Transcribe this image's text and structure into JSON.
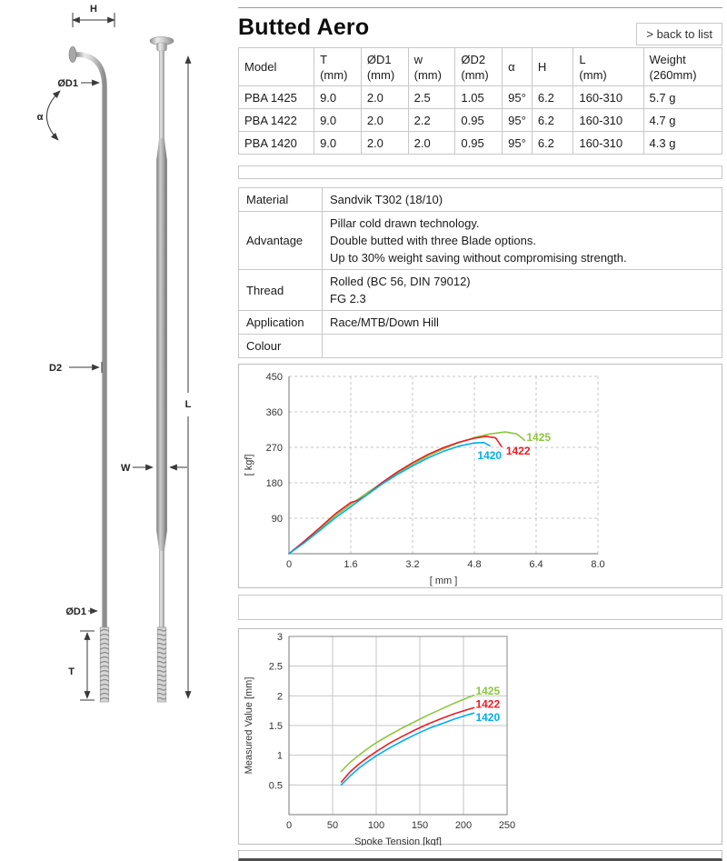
{
  "page": {
    "title": "Butted Aero",
    "back_link": "> back to list"
  },
  "diagram": {
    "h": "H",
    "d1_top": "ØD1",
    "alpha": "α",
    "d2": "D2",
    "l": "L",
    "w": "W",
    "d1_bottom": "ØD1",
    "t": "T"
  },
  "spec_table": {
    "headers": [
      [
        "Model",
        ""
      ],
      [
        "T",
        "(mm)"
      ],
      [
        "ØD1",
        "(mm)"
      ],
      [
        "w",
        "(mm)"
      ],
      [
        "ØD2",
        "(mm)"
      ],
      [
        "α",
        ""
      ],
      [
        "H",
        ""
      ],
      [
        "L",
        "(mm)"
      ],
      [
        "Weight",
        "(260mm)"
      ]
    ],
    "rows": [
      [
        "PBA 1425",
        "9.0",
        "2.0",
        "2.5",
        "1.05",
        "95°",
        "6.2",
        "160-310",
        "5.7 g"
      ],
      [
        "PBA 1422",
        "9.0",
        "2.0",
        "2.2",
        "0.95",
        "95°",
        "6.2",
        "160-310",
        "4.7 g"
      ],
      [
        "PBA 1420",
        "9.0",
        "2.0",
        "2.0",
        "0.95",
        "95°",
        "6.2",
        "160-310",
        "4.3 g"
      ]
    ]
  },
  "info_table": {
    "rows": [
      {
        "label": "Material",
        "lines": [
          "Sandvik T302 (18/10)"
        ]
      },
      {
        "label": "Advantage",
        "lines": [
          "Pillar cold drawn technology.",
          "Double butted with three Blade options.",
          "Up to 30% weight saving without compromising strength."
        ]
      },
      {
        "label": "Thread",
        "lines": [
          "Rolled (BC 56, DIN 79012)",
          "FG 2.3"
        ]
      },
      {
        "label": "Application",
        "lines": [
          "Race/MTB/Down Hill"
        ]
      },
      {
        "label": "Colour",
        "lines": [
          ""
        ]
      }
    ]
  },
  "chart_data": [
    {
      "type": "line",
      "title": "",
      "xlabel": "[ mm ]",
      "ylabel": "[ kgf]",
      "xlim": [
        0,
        8.0
      ],
      "ylim": [
        0,
        450
      ],
      "xticks": [
        "0",
        "1.6",
        "3.2",
        "4.8",
        "6.4",
        "8.0"
      ],
      "yticks": [
        "90",
        "180",
        "270",
        "360",
        "450"
      ],
      "grid": "dashed",
      "box": false,
      "legend_position": "inline-right",
      "series": [
        {
          "name": "1425",
          "color": "#8dc63f",
          "label_at": [
            6.15,
            286
          ],
          "points": [
            [
              0,
              0
            ],
            [
              0.4,
              30
            ],
            [
              0.8,
              63
            ],
            [
              1.2,
              96
            ],
            [
              1.6,
              125
            ],
            [
              2.0,
              153
            ],
            [
              2.4,
              179
            ],
            [
              2.8,
              204
            ],
            [
              3.2,
              227
            ],
            [
              3.6,
              248
            ],
            [
              4.0,
              266
            ],
            [
              4.4,
              282
            ],
            [
              4.8,
              295
            ],
            [
              5.2,
              304
            ],
            [
              5.6,
              309
            ],
            [
              5.9,
              304
            ],
            [
              6.1,
              288
            ]
          ]
        },
        {
          "name": "1422",
          "color": "#ed1c24",
          "label_at": [
            5.62,
            252
          ],
          "points": [
            [
              0,
              0
            ],
            [
              0.4,
              32
            ],
            [
              0.8,
              66
            ],
            [
              1.2,
              101
            ],
            [
              1.6,
              130
            ],
            [
              1.8,
              136
            ],
            [
              2.0,
              148
            ],
            [
              2.4,
              180
            ],
            [
              2.8,
              207
            ],
            [
              3.2,
              231
            ],
            [
              3.6,
              252
            ],
            [
              4.0,
              269
            ],
            [
              4.4,
              283
            ],
            [
              4.8,
              293
            ],
            [
              5.1,
              298
            ],
            [
              5.35,
              294
            ],
            [
              5.5,
              272
            ]
          ]
        },
        {
          "name": "1420",
          "color": "#00aeef",
          "label_at": [
            4.88,
            240
          ],
          "points": [
            [
              0,
              0
            ],
            [
              0.4,
              28
            ],
            [
              0.8,
              59
            ],
            [
              1.2,
              91
            ],
            [
              1.6,
              119
            ],
            [
              2.0,
              148
            ],
            [
              2.4,
              176
            ],
            [
              2.8,
              201
            ],
            [
              3.2,
              223
            ],
            [
              3.6,
              243
            ],
            [
              4.0,
              260
            ],
            [
              4.4,
              273
            ],
            [
              4.8,
              281
            ],
            [
              5.05,
              282
            ],
            [
              5.2,
              274
            ]
          ]
        }
      ]
    },
    {
      "type": "line",
      "title": "",
      "xlabel": "Spoke Tension [kgf]",
      "ylabel": "Measured Value [mm]",
      "xlim": [
        0,
        250
      ],
      "ylim": [
        0,
        3
      ],
      "xticks": [
        "0",
        "50",
        "100",
        "150",
        "200",
        "250"
      ],
      "yticks": [
        "0.5",
        "1",
        "1.5",
        "2",
        "2.5",
        "3"
      ],
      "grid": "solid",
      "box": true,
      "legend_position": "inline-right",
      "series": [
        {
          "name": "1425",
          "color": "#8dc63f",
          "label_at": [
            214,
            2.02
          ],
          "points": [
            [
              60,
              0.73
            ],
            [
              70,
              0.88
            ],
            [
              80,
              1.0
            ],
            [
              90,
              1.11
            ],
            [
              100,
              1.21
            ],
            [
              115,
              1.34
            ],
            [
              130,
              1.46
            ],
            [
              145,
              1.57
            ],
            [
              160,
              1.68
            ],
            [
              175,
              1.78
            ],
            [
              190,
              1.88
            ],
            [
              205,
              1.97
            ],
            [
              212,
              2.01
            ]
          ]
        },
        {
          "name": "1422",
          "color": "#ed1c24",
          "label_at": [
            214,
            1.8
          ],
          "points": [
            [
              60,
              0.55
            ],
            [
              70,
              0.72
            ],
            [
              80,
              0.85
            ],
            [
              90,
              0.96
            ],
            [
              100,
              1.06
            ],
            [
              115,
              1.2
            ],
            [
              130,
              1.32
            ],
            [
              145,
              1.43
            ],
            [
              160,
              1.53
            ],
            [
              175,
              1.62
            ],
            [
              190,
              1.7
            ],
            [
              205,
              1.77
            ],
            [
              212,
              1.8
            ]
          ]
        },
        {
          "name": "1420",
          "color": "#00aeef",
          "label_at": [
            214,
            1.58
          ],
          "points": [
            [
              60,
              0.5
            ],
            [
              70,
              0.65
            ],
            [
              80,
              0.78
            ],
            [
              90,
              0.89
            ],
            [
              100,
              0.99
            ],
            [
              115,
              1.12
            ],
            [
              130,
              1.24
            ],
            [
              145,
              1.35
            ],
            [
              160,
              1.45
            ],
            [
              175,
              1.53
            ],
            [
              190,
              1.61
            ],
            [
              205,
              1.68
            ],
            [
              212,
              1.71
            ]
          ]
        }
      ]
    }
  ]
}
